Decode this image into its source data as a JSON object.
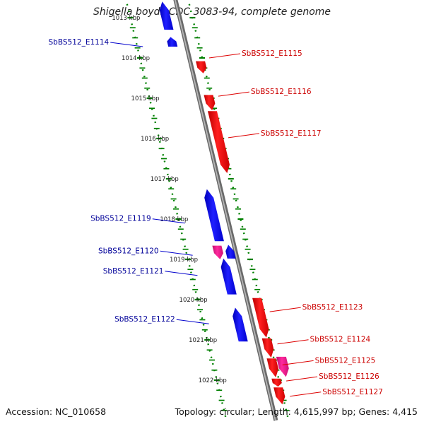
{
  "title": "Shigella boydii CDC 3083-94, complete genome",
  "accession": "Accession: NC_010658",
  "summary": "Topology: circular; Length: 4,615,997 bp; Genes: 4,415",
  "colors": {
    "reverse": "#0000ff",
    "forward": "#ff0000",
    "rna": "#ff1493",
    "backbone": "#808080",
    "ruler": "#008000",
    "label_reverse": "#000099",
    "label_forward": "#cc0000"
  },
  "ruler": {
    "unit": "kbp",
    "ticks": [
      {
        "kbp": 1013,
        "label": "1013 kbp"
      },
      {
        "kbp": 1014,
        "label": "1014 kbp"
      },
      {
        "kbp": 1015,
        "label": "1015 kbp"
      },
      {
        "kbp": 1016,
        "label": "1016 kbp"
      },
      {
        "kbp": 1017,
        "label": "1017 kbp"
      },
      {
        "kbp": 1018,
        "label": "1018 kbp"
      },
      {
        "kbp": 1019,
        "label": "1019 kbp"
      },
      {
        "kbp": 1020,
        "label": "1020 kbp"
      },
      {
        "kbp": 1021,
        "label": "1021 kbp"
      },
      {
        "kbp": 1022,
        "label": "1022 kbp"
      }
    ]
  },
  "features": [
    {
      "label": "",
      "strand": "reverse",
      "type": "cds",
      "start": 1012.6,
      "end": 1013.3
    },
    {
      "label": "SbBS512_E1114",
      "strand": "reverse",
      "type": "cds",
      "start": 1013.48,
      "end": 1013.72
    },
    {
      "label": "SbBS512_E1115",
      "strand": "forward",
      "type": "cds",
      "start": 1014.08,
      "end": 1014.38
    },
    {
      "label": "SbBS512_E1116",
      "strand": "forward",
      "type": "cds",
      "start": 1014.92,
      "end": 1015.3
    },
    {
      "label": "SbBS512_E1117",
      "strand": "forward",
      "type": "cds",
      "start": 1015.32,
      "end": 1016.86
    },
    {
      "label": "SbBS512_E1119",
      "strand": "reverse",
      "type": "cds",
      "start": 1017.26,
      "end": 1018.55
    },
    {
      "label": "SbBS512_E1120",
      "strand": "forward",
      "type": "rna",
      "start": 1018.66,
      "end": 1019.0
    },
    {
      "label": "",
      "strand": "reverse",
      "type": "cds",
      "start": 1018.64,
      "end": 1018.98
    },
    {
      "label": "SbBS512_E1121",
      "strand": "reverse",
      "type": "cds",
      "start": 1018.98,
      "end": 1019.87
    },
    {
      "label": "SbBS512_E1122",
      "strand": "reverse",
      "type": "cds",
      "start": 1020.2,
      "end": 1021.04
    },
    {
      "label": "SbBS512_E1123",
      "strand": "forward",
      "type": "cds",
      "start": 1019.96,
      "end": 1020.94
    },
    {
      "label": "SbBS512_E1124",
      "strand": "forward",
      "type": "cds",
      "start": 1020.96,
      "end": 1021.44
    },
    {
      "label": "SbBS512_E1125",
      "strand": "forward",
      "type": "cds",
      "start": 1021.46,
      "end": 1021.93
    },
    {
      "label": "SbBS512_E1125",
      "strand": "forward",
      "type": "rna",
      "start": 1021.42,
      "end": 1021.92
    },
    {
      "label": "SbBS512_E1126",
      "strand": "forward",
      "type": "cds",
      "start": 1021.96,
      "end": 1022.16
    },
    {
      "label": "SbBS512_E1127",
      "strand": "forward",
      "type": "cds",
      "start": 1022.18,
      "end": 1022.6
    }
  ],
  "labels": [
    {
      "text": "SbBS512_E1114",
      "side": "left",
      "kbp": 1013.72
    },
    {
      "text": "SbBS512_E1115",
      "side": "right",
      "kbp": 1014.0
    },
    {
      "text": "SbBS512_E1116",
      "side": "right",
      "kbp": 1014.95
    },
    {
      "text": "SbBS512_E1117",
      "side": "right",
      "kbp": 1015.98
    },
    {
      "text": "SbBS512_E1119",
      "side": "left",
      "kbp": 1018.1
    },
    {
      "text": "SbBS512_E1120",
      "side": "left",
      "kbp": 1018.9
    },
    {
      "text": "SbBS512_E1121",
      "side": "left",
      "kbp": 1019.4
    },
    {
      "text": "SbBS512_E1122",
      "side": "left",
      "kbp": 1020.6
    },
    {
      "text": "SbBS512_E1123",
      "side": "right",
      "kbp": 1020.3
    },
    {
      "text": "SbBS512_E1124",
      "side": "right",
      "kbp": 1021.1
    },
    {
      "text": "SbBS512_E1125",
      "side": "right",
      "kbp": 1021.62
    },
    {
      "text": "SbBS512_E1126",
      "side": "right",
      "kbp": 1022.02
    },
    {
      "text": "SbBS512_E1127",
      "side": "right",
      "kbp": 1022.4
    }
  ]
}
